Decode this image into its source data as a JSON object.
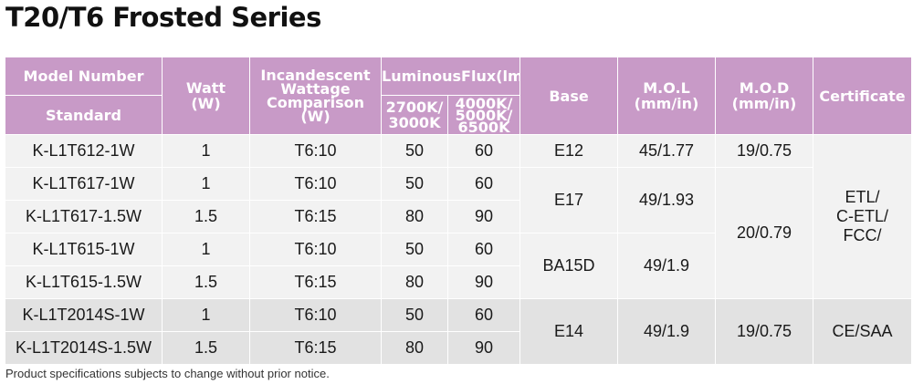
{
  "title": "T20/T6 Frosted Series",
  "header": {
    "model_number": "Model Number",
    "standard": "Standard",
    "watt": "Watt\n(W)",
    "incandescent": "Incandescent\nWattage\nComparison\n(W)",
    "luminous_flux": "LuminousFlux(lm)",
    "flux_warm": "2700K/\n3000K",
    "flux_cool": "4000K/\n5000K/\n6500K",
    "base": "Base",
    "mol": "M.O.L\n(mm/in)",
    "mod": "M.O.D\n(mm/in)",
    "certificate": "Certificate"
  },
  "rows": [
    {
      "model": "K-L1T612-1W",
      "watt": "1",
      "incandescent": "T6:10",
      "flux_warm": "50",
      "flux_cool": "60"
    },
    {
      "model": "K-L1T617-1W",
      "watt": "1",
      "incandescent": "T6:10",
      "flux_warm": "50",
      "flux_cool": "60"
    },
    {
      "model": "K-L1T617-1.5W",
      "watt": "1.5",
      "incandescent": "T6:15",
      "flux_warm": "80",
      "flux_cool": "90"
    },
    {
      "model": "K-L1T615-1W",
      "watt": "1",
      "incandescent": "T6:10",
      "flux_warm": "50",
      "flux_cool": "60"
    },
    {
      "model": "K-L1T615-1.5W",
      "watt": "1.5",
      "incandescent": "T6:15",
      "flux_warm": "80",
      "flux_cool": "90"
    },
    {
      "model": "K-L1T2014S-1W",
      "watt": "1",
      "incandescent": "T6:10",
      "flux_warm": "50",
      "flux_cool": "60"
    },
    {
      "model": "K-L1T2014S-1.5W",
      "watt": "1.5",
      "incandescent": "T6:15",
      "flux_warm": "80",
      "flux_cool": "90"
    }
  ],
  "merged": {
    "base_e12": "E12",
    "base_e17": "E17",
    "base_ba15d": "BA15D",
    "base_e14": "E14",
    "mol_1": "45/1.77",
    "mol_2": "49/1.93",
    "mol_3": "49/1.9",
    "mol_4": "49/1.9",
    "mod_1": "19/0.75",
    "mod_2": "20/0.79",
    "mod_3": "19/0.75",
    "cert_1": "ETL/\nC-ETL/\nFCC/",
    "cert_2": "CE/SAA"
  },
  "footnote": "Product specifications subjects to change without prior notice.",
  "colors": {
    "header_bg": "#c89ac7",
    "header_text": "#ffffff",
    "row_light": "#f2f2f2",
    "row_dark": "#e2e2e2"
  }
}
